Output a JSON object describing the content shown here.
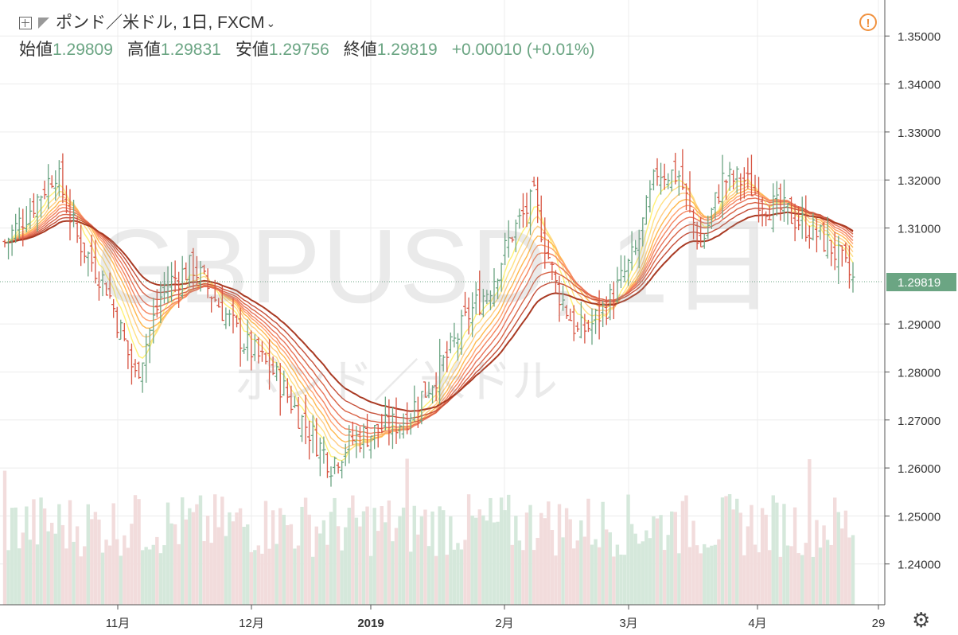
{
  "header": {
    "symbol_label": "ポンド／米ドル, 1日, FXCM",
    "watermark_main": "GBPUSD, 1日",
    "watermark_sub": "ポンド／米ドル"
  },
  "ohlc": {
    "open_label": "始値",
    "open": "1.29809",
    "high_label": "高値",
    "high": "1.29831",
    "low_label": "安値",
    "low": "1.29756",
    "close_label": "終値",
    "close": "1.29819",
    "change": "+0.00010 (+0.01%)"
  },
  "colors": {
    "up": "#6ba583",
    "down": "#d75442",
    "last_price_bg": "#6ba583",
    "vol_up": "#d5e8db",
    "vol_down": "#f2dcdc",
    "grid": "#ececec",
    "warn": "#f0913e"
  },
  "chart_data": {
    "type": "candlestick",
    "symbol": "GBPUSD",
    "timeframe": "1日",
    "y_ticks": [
      "1.35000",
      "1.34000",
      "1.33000",
      "1.32000",
      "1.31000",
      "1.29000",
      "1.28000",
      "1.27000",
      "1.26000",
      "1.25000",
      "1.24000"
    ],
    "x_ticks": [
      "11月",
      "12月",
      "2019",
      "2月",
      "3月",
      "4月",
      "29"
    ],
    "last_price": "1.29819",
    "ylim": [
      1.2315,
      1.3575
    ],
    "grid": true,
    "indicators": "Guppy multiple moving averages",
    "ema_colors": [
      "#fff176",
      "#ffe082",
      "#ffcc80",
      "#ffb74d",
      "#ffa270",
      "#f4845f",
      "#e8745a",
      "#d96548",
      "#c54f39",
      "#a93a23"
    ]
  }
}
